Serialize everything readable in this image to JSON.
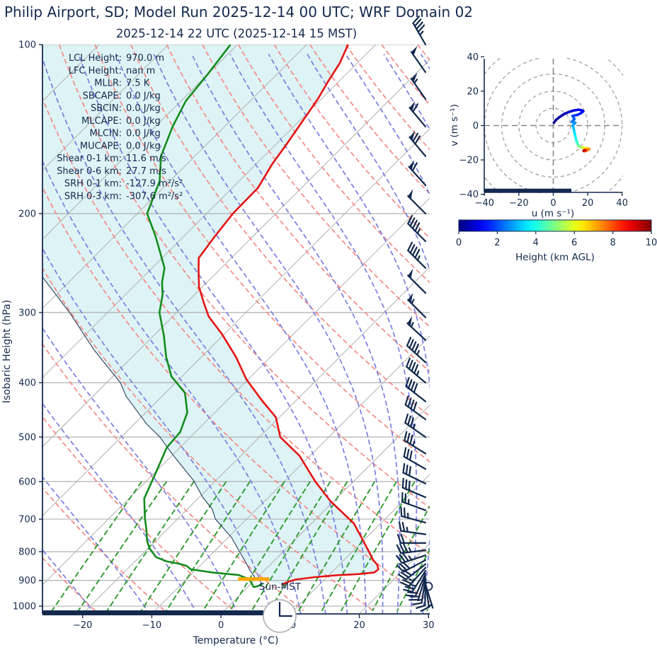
{
  "title": "Philip Airport, SD; Model Run 2025-12-14 00 UTC; WRF Domain 02",
  "subtitle": "2025-12-14 22 UTC  (2025-12-14 15 MST)",
  "colors": {
    "text_navy": "#14294e",
    "temperature_curve": "#e51414",
    "dewpoint_curve": "#148c1e",
    "parcel_line": "#1b2c4e",
    "cin_shade": "#ddf3f5",
    "dry_adiabat": "#f58a84",
    "moist_adiabat": "#7b7de2",
    "mixing_ratio": "#2d9b2d",
    "isotherm_gray": "#b0b0b0",
    "grid_gray": "#a8a8a8",
    "sun_bar_orange": "#ffa500",
    "barb_navy": "#12294d"
  },
  "chart_data": {
    "type": "skewt-sounding",
    "station": "Philip Airport, SD",
    "model_run": "2025-12-14 00 UTC",
    "valid_time": "2025-12-14 22 UTC (2025-12-14 15 MST)",
    "pressure_axis": {
      "label": "Isobaric Height (hPa)",
      "ticks": [
        100,
        200,
        300,
        400,
        500,
        600,
        700,
        800,
        900,
        1000
      ],
      "range": [
        100,
        1032
      ],
      "scale": "log"
    },
    "temp_axis": {
      "label": "Temperature (°C)",
      "ticks": [
        -20,
        -10,
        0,
        10,
        20,
        30
      ],
      "range": [
        -25,
        30
      ]
    },
    "indices": [
      {
        "label": "LCL Height:",
        "value": "970.0 m"
      },
      {
        "label": "LFC Height:",
        "value": "nan m"
      },
      {
        "label": "MLLR:",
        "value": "7.5 K"
      },
      {
        "label": "SBCAPE:",
        "value": "0.0 J/kg"
      },
      {
        "label": "SBCIN:",
        "value": "0.0 J/kg"
      },
      {
        "label": "MLCAPE:",
        "value": "0.0 J/kg"
      },
      {
        "label": "MLCIN:",
        "value": "0.0 J/kg"
      },
      {
        "label": "MUCAPE:",
        "value": "0.0 J/kg"
      },
      {
        "label": "Shear 0-1 km:",
        "value": "11.6 m/s"
      },
      {
        "label": "Shear 0-6 km:",
        "value": "27.7 m/s"
      },
      {
        "label": "SRH 0-1 km:",
        "value": "-127.9 m²/s²"
      },
      {
        "label": "SRH 0-3 km:",
        "value": "-307.6 m²/s²"
      }
    ],
    "temperature_profile": [
      [
        100,
        -64
      ],
      [
        108,
        -62.5
      ],
      [
        116,
        -61.6
      ],
      [
        125,
        -60.5
      ],
      [
        137,
        -59.5
      ],
      [
        150,
        -58.5
      ],
      [
        163,
        -57.7
      ],
      [
        180,
        -56.3
      ],
      [
        200,
        -56.2
      ],
      [
        220,
        -55.5
      ],
      [
        240,
        -54.7
      ],
      [
        252,
        -53.0
      ],
      [
        270,
        -50.5
      ],
      [
        287,
        -47.7
      ],
      [
        305,
        -44.8
      ],
      [
        328,
        -40.3
      ],
      [
        360,
        -35.0
      ],
      [
        395,
        -30.2
      ],
      [
        430,
        -25.0
      ],
      [
        461,
        -20.5
      ],
      [
        500,
        -17.0
      ],
      [
        540,
        -11.5
      ],
      [
        600,
        -5.5
      ],
      [
        650,
        -0.5
      ],
      [
        712,
        6.1
      ],
      [
        758,
        9.5
      ],
      [
        794,
        12.0
      ],
      [
        829,
        14.3
      ],
      [
        844,
        15.5
      ],
      [
        860,
        16.3
      ],
      [
        871,
        16.2
      ],
      [
        877,
        14.2
      ],
      [
        881,
        11.2
      ],
      [
        888,
        8.3
      ],
      [
        897,
        5.8
      ],
      [
        908,
        4.9
      ],
      [
        917,
        4.6
      ]
    ],
    "dewpoint_profile": [
      [
        100,
        -81
      ],
      [
        113,
        -80
      ],
      [
        126,
        -79.3
      ],
      [
        140,
        -77.5
      ],
      [
        158,
        -74.9
      ],
      [
        175,
        -71.5
      ],
      [
        200,
        -68.6
      ],
      [
        219,
        -64.2
      ],
      [
        235,
        -61.0
      ],
      [
        250,
        -58.2
      ],
      [
        265,
        -56.5
      ],
      [
        279,
        -54.6
      ],
      [
        300,
        -52.5
      ],
      [
        330,
        -48.5
      ],
      [
        360,
        -45.1
      ],
      [
        390,
        -41.5
      ],
      [
        417,
        -37.2
      ],
      [
        452,
        -34.0
      ],
      [
        490,
        -32.2
      ],
      [
        522,
        -31.9
      ],
      [
        560,
        -30.5
      ],
      [
        598,
        -29.2
      ],
      [
        643,
        -27.8
      ],
      [
        698,
        -24.8
      ],
      [
        730,
        -23.0
      ],
      [
        766,
        -21.2
      ],
      [
        789,
        -19.8
      ],
      [
        818,
        -17.6
      ],
      [
        832,
        -15.5
      ],
      [
        840,
        -13.4
      ],
      [
        848,
        -11.9
      ],
      [
        860,
        -10.8
      ],
      [
        872,
        -6.9
      ],
      [
        880,
        -3.1
      ],
      [
        895,
        -1.0
      ],
      [
        910,
        0.0
      ],
      [
        921,
        0.6
      ],
      [
        925,
        0.9
      ],
      [
        920,
        1.4
      ],
      [
        913,
        1.7
      ]
    ],
    "parcel_profile": [
      [
        250,
        -77
      ],
      [
        260,
        -74.4
      ],
      [
        300,
        -65.5
      ],
      [
        350,
        -56.5
      ],
      [
        400,
        -48.0
      ],
      [
        423,
        -45.2
      ],
      [
        474,
        -38.2
      ],
      [
        500,
        -34.4
      ],
      [
        534,
        -30.4
      ],
      [
        598,
        -23.2
      ],
      [
        640,
        -19.5
      ],
      [
        672,
        -16.4
      ],
      [
        700,
        -14.5
      ],
      [
        755,
        -9.5
      ],
      [
        800,
        -6.3
      ],
      [
        832,
        -4.1
      ],
      [
        862,
        -2.2
      ],
      [
        890,
        -0.3
      ]
    ],
    "sun_marker": {
      "label": "Sun-MST",
      "pressure_hpa": 895,
      "temp_c": -0.3
    },
    "wind_barbs": [
      [
        100,
        45,
        330
      ],
      [
        112,
        50,
        325
      ],
      [
        125,
        55,
        325
      ],
      [
        140,
        60,
        320
      ],
      [
        158,
        70,
        320
      ],
      [
        178,
        60,
        318
      ],
      [
        200,
        50,
        315
      ],
      [
        224,
        45,
        315
      ],
      [
        250,
        45,
        315
      ],
      [
        277,
        50,
        315
      ],
      [
        306,
        55,
        315
      ],
      [
        336,
        55,
        313
      ],
      [
        368,
        45,
        312
      ],
      [
        400,
        45,
        310
      ],
      [
        432,
        40,
        308
      ],
      [
        465,
        40,
        306
      ],
      [
        500,
        35,
        305
      ],
      [
        535,
        35,
        302
      ],
      [
        570,
        30,
        300
      ],
      [
        605,
        30,
        296
      ],
      [
        640,
        30,
        293
      ],
      [
        675,
        25,
        290
      ],
      [
        710,
        25,
        285
      ],
      [
        745,
        25,
        278
      ],
      [
        772,
        20,
        270
      ],
      [
        795,
        35,
        263
      ],
      [
        812,
        35,
        252
      ],
      [
        828,
        30,
        242
      ],
      [
        842,
        30,
        232
      ],
      [
        854,
        25,
        222
      ],
      [
        865,
        25,
        212
      ],
      [
        875,
        20,
        204
      ],
      [
        884,
        20,
        197
      ],
      [
        893,
        15,
        189
      ],
      [
        901,
        12,
        181
      ],
      [
        908,
        9,
        172
      ],
      [
        914,
        6,
        163
      ]
    ],
    "hodograph": {
      "xlabel": "u (m s⁻¹)",
      "ylabel": "v (m s⁻¹)",
      "ticks": [
        -40,
        -20,
        0,
        20,
        40
      ],
      "rings": [
        10,
        20,
        30,
        40,
        50
      ],
      "range": [
        -40,
        40
      ],
      "trace_uvh": [
        [
          0.4,
          1.7,
          0.0
        ],
        [
          1.5,
          3.2,
          0.15
        ],
        [
          3.7,
          5.0,
          0.3
        ],
        [
          6.5,
          6.8,
          0.5
        ],
        [
          9.1,
          7.9,
          0.7
        ],
        [
          12.0,
          8.8,
          0.9
        ],
        [
          14.5,
          9.2,
          1.05
        ],
        [
          16.5,
          8.9,
          1.2
        ],
        [
          17.4,
          8.3,
          1.3
        ],
        [
          15.8,
          7.0,
          1.45
        ],
        [
          14.0,
          6.2,
          1.6
        ],
        [
          12.2,
          5.8,
          1.75
        ],
        [
          11.2,
          5.6,
          1.9
        ],
        [
          11.8,
          4.6,
          2.0
        ],
        [
          12.3,
          3.8,
          2.1
        ],
        [
          11.4,
          2.8,
          2.25
        ],
        [
          10.8,
          2.1,
          2.35
        ],
        [
          12.0,
          1.9,
          2.5
        ],
        [
          12.8,
          1.6,
          2.6
        ],
        [
          12.0,
          0.8,
          2.75
        ],
        [
          11.3,
          0.0,
          2.9
        ],
        [
          11.7,
          -1.2,
          3.0
        ],
        [
          12.0,
          -2.5,
          3.15
        ],
        [
          12.4,
          -4.4,
          3.4
        ],
        [
          12.8,
          -6.2,
          3.65
        ],
        [
          13.2,
          -8.0,
          3.9
        ],
        [
          13.6,
          -9.6,
          4.15
        ],
        [
          14.3,
          -11.0,
          4.45
        ],
        [
          14.9,
          -12.0,
          4.75
        ],
        [
          16.0,
          -12.5,
          5.1
        ],
        [
          16.9,
          -12.8,
          5.5
        ],
        [
          18.0,
          -13.0,
          5.9
        ],
        [
          19.0,
          -13.2,
          6.3
        ],
        [
          20.1,
          -13.4,
          6.7
        ],
        [
          21.0,
          -13.7,
          7.05
        ],
        [
          20.2,
          -14.1,
          7.4
        ],
        [
          19.2,
          -14.6,
          7.7
        ],
        [
          18.3,
          -14.9,
          8.0
        ],
        [
          18.7,
          -14.2,
          8.4
        ],
        [
          17.9,
          -14.4,
          9.2
        ],
        [
          17.6,
          -14.8,
          9.8
        ]
      ]
    },
    "colorbar": {
      "label": "Height (km AGL)",
      "ticks": [
        0,
        2,
        4,
        6,
        8,
        10
      ],
      "min": 0,
      "max": 10,
      "colormap": "jet"
    },
    "background": {
      "isotherms_c": [
        -110,
        -100,
        -90,
        -80,
        -70,
        -60,
        -50,
        -40,
        -30,
        -20,
        -10,
        0,
        10,
        20,
        30
      ],
      "dry_adiabats_theta_c": [
        -30,
        -20,
        -10,
        0,
        10,
        20,
        30,
        40,
        50,
        60,
        70,
        80,
        90,
        100,
        110,
        120,
        130,
        140,
        150,
        160
      ],
      "moist_adiabats_thetae_k": [
        235,
        245,
        255,
        265,
        275,
        285,
        295,
        305,
        315,
        325,
        335,
        345,
        355,
        365,
        375,
        385,
        395,
        405,
        415,
        425
      ],
      "mixing_ratios_gkg": [
        0.5,
        0.7,
        1,
        1.5,
        2,
        3,
        4,
        5,
        6,
        8,
        10,
        12,
        16,
        20,
        26
      ],
      "mixing_ratio_top_hpa": 600
    }
  }
}
